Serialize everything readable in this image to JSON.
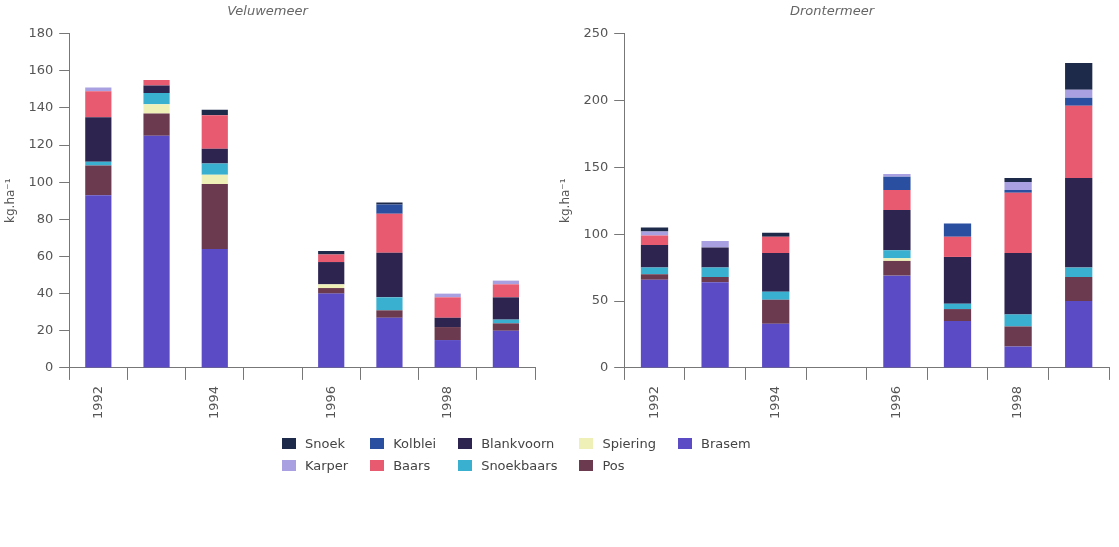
{
  "chart_data": [
    {
      "type": "bar",
      "title": "Veluwemeer",
      "ylabel": "kg.ha⁻¹",
      "stacked": true,
      "grid": false,
      "categories": [
        "1992",
        null,
        "1994",
        null,
        "1996",
        null,
        "1998",
        null
      ],
      "ylim": [
        0,
        180
      ],
      "yticks": [
        0,
        20,
        40,
        60,
        80,
        100,
        120,
        140,
        160,
        180
      ],
      "series": [
        {
          "color": "#5b4bc4",
          "values": [
            93,
            125,
            64,
            null,
            40,
            27,
            15,
            20
          ]
        },
        {
          "color": "#6b3a4e",
          "values": [
            16,
            12,
            35,
            null,
            3,
            4,
            7,
            4
          ]
        },
        {
          "color": "#eef0b8",
          "values": [
            null,
            5,
            5,
            null,
            2,
            null,
            null,
            null
          ]
        },
        {
          "color": "#3ab0d0",
          "values": [
            2,
            6,
            6,
            null,
            null,
            7,
            null,
            2
          ]
        },
        {
          "color": "#2e2450",
          "values": [
            24,
            4,
            8,
            null,
            12,
            24,
            5,
            12
          ]
        },
        {
          "color": "#e85a70",
          "values": [
            14,
            3,
            18,
            null,
            4,
            21,
            11,
            7
          ]
        },
        {
          "color": "#2a4fa0",
          "values": [
            null,
            null,
            null,
            null,
            null,
            5,
            null,
            null
          ]
        },
        {
          "color": "#a8a0e0",
          "values": [
            2,
            null,
            null,
            null,
            null,
            null,
            2,
            2
          ]
        },
        {
          "color": "#1e2a4a",
          "values": [
            null,
            null,
            3,
            null,
            2,
            1,
            null,
            null
          ]
        }
      ]
    },
    {
      "type": "bar",
      "title": "Drontermeer",
      "ylabel": "kg.ha⁻¹",
      "stacked": true,
      "grid": false,
      "legend": "bottom",
      "categories": [
        "1992",
        null,
        "1994",
        null,
        "1996",
        null,
        "1998",
        null
      ],
      "ylim": [
        0,
        250
      ],
      "yticks": [
        0,
        50,
        100,
        150,
        200,
        250
      ],
      "series": [
        {
          "name": "Brasem",
          "color": "#5b4bc4",
          "values": [
            66,
            64,
            33,
            null,
            69,
            35,
            16,
            50
          ]
        },
        {
          "name": "Pos",
          "color": "#6b3a4e",
          "values": [
            4,
            4,
            18,
            null,
            11,
            9,
            15,
            18
          ]
        },
        {
          "name": "Spiering",
          "color": "#eef0b8",
          "values": [
            null,
            null,
            null,
            null,
            2,
            null,
            null,
            null
          ]
        },
        {
          "name": "Snoekbaars",
          "color": "#3ab0d0",
          "values": [
            5,
            7,
            6,
            null,
            6,
            4,
            9,
            7
          ]
        },
        {
          "name": "Blankvoorn",
          "color": "#2e2450",
          "values": [
            17,
            15,
            29,
            null,
            30,
            35,
            46,
            67
          ]
        },
        {
          "name": "Baars",
          "color": "#e85a70",
          "values": [
            7,
            null,
            12,
            null,
            15,
            15,
            45,
            54
          ]
        },
        {
          "name": "Kolblei",
          "color": "#2a4fa0",
          "values": [
            null,
            null,
            null,
            null,
            10,
            10,
            2,
            6
          ]
        },
        {
          "name": "Karper",
          "color": "#a8a0e0",
          "values": [
            3,
            5,
            null,
            null,
            2,
            null,
            6,
            6
          ]
        },
        {
          "name": "Snoek",
          "color": "#1e2a4a",
          "values": [
            3,
            null,
            3,
            null,
            null,
            null,
            3,
            20
          ]
        }
      ]
    }
  ]
}
